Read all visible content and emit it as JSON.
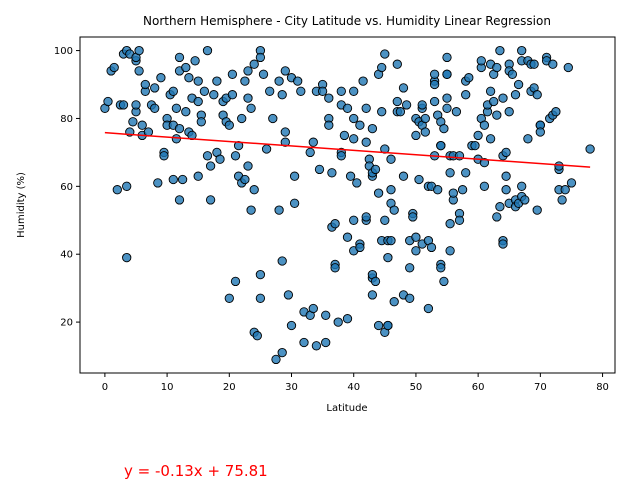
{
  "chart_data": {
    "type": "scatter",
    "title": "Northern Hemisphere - City Latitude vs. Humidity Linear Regression",
    "xlabel": "Latitude",
    "ylabel": "Humidity (%)",
    "xlim": [
      -4,
      82
    ],
    "ylim": [
      5,
      104
    ],
    "x_ticks": [
      0,
      10,
      20,
      30,
      40,
      50,
      60,
      70,
      80
    ],
    "y_ticks": [
      20,
      40,
      60,
      80,
      100
    ],
    "grid": false,
    "point_color": "#1f77b4",
    "line_color": "#ff0000",
    "regression": {
      "slope": -0.13,
      "intercept": 75.81,
      "equation": "y = -0.13x + 75.81",
      "x_range": [
        0,
        78
      ]
    },
    "points": [
      [
        0,
        83
      ],
      [
        0.5,
        85
      ],
      [
        1,
        94
      ],
      [
        1.5,
        95
      ],
      [
        2,
        59
      ],
      [
        2.5,
        84
      ],
      [
        3,
        84
      ],
      [
        3,
        99
      ],
      [
        3.5,
        100
      ],
      [
        3.5,
        39
      ],
      [
        3.5,
        60
      ],
      [
        4,
        76
      ],
      [
        4,
        99
      ],
      [
        4.5,
        79
      ],
      [
        5,
        82
      ],
      [
        5,
        84
      ],
      [
        5,
        97
      ],
      [
        5,
        98
      ],
      [
        5.5,
        94
      ],
      [
        5.5,
        100
      ],
      [
        6,
        75
      ],
      [
        6,
        78
      ],
      [
        6.5,
        88
      ],
      [
        6.5,
        90
      ],
      [
        7,
        76
      ],
      [
        7.5,
        84
      ],
      [
        8,
        83
      ],
      [
        8,
        89
      ],
      [
        8.5,
        61
      ],
      [
        9,
        92
      ],
      [
        9.5,
        70
      ],
      [
        9.5,
        69
      ],
      [
        10,
        80
      ],
      [
        10,
        78
      ],
      [
        10.5,
        87
      ],
      [
        11,
        78
      ],
      [
        11,
        88
      ],
      [
        11,
        62
      ],
      [
        11.5,
        74
      ],
      [
        11.5,
        83
      ],
      [
        12,
        56
      ],
      [
        12,
        94
      ],
      [
        12,
        98
      ],
      [
        12,
        77
      ],
      [
        12.5,
        62
      ],
      [
        13,
        95
      ],
      [
        13,
        82
      ],
      [
        13.5,
        76
      ],
      [
        13.5,
        92
      ],
      [
        14,
        86
      ],
      [
        14,
        75
      ],
      [
        14.5,
        97
      ],
      [
        15,
        63
      ],
      [
        15,
        91
      ],
      [
        15,
        85
      ],
      [
        15.5,
        81
      ],
      [
        15.5,
        79
      ],
      [
        16,
        88
      ],
      [
        16.5,
        69
      ],
      [
        16.5,
        100
      ],
      [
        17,
        56
      ],
      [
        17,
        66
      ],
      [
        17.5,
        87
      ],
      [
        18,
        70
      ],
      [
        18,
        91
      ],
      [
        18.5,
        68
      ],
      [
        19,
        81
      ],
      [
        19,
        85
      ],
      [
        19.5,
        86
      ],
      [
        19.5,
        79
      ],
      [
        20,
        27
      ],
      [
        20,
        78
      ],
      [
        20.5,
        93
      ],
      [
        20.5,
        87
      ],
      [
        21,
        32
      ],
      [
        21,
        69
      ],
      [
        21.5,
        72
      ],
      [
        21.5,
        63
      ],
      [
        22,
        80
      ],
      [
        22,
        61
      ],
      [
        22.5,
        62
      ],
      [
        22.5,
        91
      ],
      [
        23,
        66
      ],
      [
        23,
        86
      ],
      [
        23,
        94
      ],
      [
        23.5,
        83
      ],
      [
        23.5,
        53
      ],
      [
        24,
        96
      ],
      [
        24,
        59
      ],
      [
        24,
        17
      ],
      [
        24.5,
        16
      ],
      [
        25,
        100
      ],
      [
        25,
        27
      ],
      [
        25,
        34
      ],
      [
        25,
        98
      ],
      [
        25.5,
        93
      ],
      [
        26,
        71
      ],
      [
        26.5,
        88
      ],
      [
        27,
        80
      ],
      [
        27.5,
        9
      ],
      [
        28,
        91
      ],
      [
        28,
        53
      ],
      [
        28.5,
        87
      ],
      [
        28.5,
        11
      ],
      [
        28.5,
        38
      ],
      [
        29,
        76
      ],
      [
        29,
        73
      ],
      [
        29,
        94
      ],
      [
        29.5,
        28
      ],
      [
        30,
        19
      ],
      [
        30,
        92
      ],
      [
        30.5,
        63
      ],
      [
        30.5,
        55
      ],
      [
        31,
        91
      ],
      [
        31.5,
        88
      ],
      [
        32,
        23
      ],
      [
        32,
        14
      ],
      [
        33,
        22
      ],
      [
        33,
        70
      ],
      [
        33.5,
        73
      ],
      [
        33.5,
        24
      ],
      [
        34,
        13
      ],
      [
        34,
        88
      ],
      [
        34.5,
        65
      ],
      [
        35,
        90
      ],
      [
        35,
        88
      ],
      [
        35.5,
        22
      ],
      [
        35.5,
        14
      ],
      [
        36,
        80
      ],
      [
        36,
        78
      ],
      [
        36,
        86
      ],
      [
        36.5,
        48
      ],
      [
        36.5,
        64
      ],
      [
        37,
        37
      ],
      [
        37,
        36
      ],
      [
        37,
        49
      ],
      [
        37.5,
        20
      ],
      [
        38,
        84
      ],
      [
        38,
        70
      ],
      [
        38,
        69
      ],
      [
        38,
        88
      ],
      [
        38.5,
        75
      ],
      [
        39,
        83
      ],
      [
        39,
        21
      ],
      [
        39,
        45
      ],
      [
        39.5,
        63
      ],
      [
        40,
        80
      ],
      [
        40,
        88
      ],
      [
        40,
        50
      ],
      [
        40,
        41
      ],
      [
        40,
        74
      ],
      [
        40.5,
        61
      ],
      [
        41,
        43
      ],
      [
        41,
        42
      ],
      [
        41,
        78
      ],
      [
        41.5,
        91
      ],
      [
        42,
        83
      ],
      [
        42,
        50
      ],
      [
        42,
        51
      ],
      [
        42,
        73
      ],
      [
        42.5,
        68
      ],
      [
        42.5,
        66
      ],
      [
        43,
        77
      ],
      [
        43,
        63
      ],
      [
        43,
        33
      ],
      [
        43,
        34
      ],
      [
        43,
        28
      ],
      [
        43,
        64
      ],
      [
        43.5,
        32
      ],
      [
        43.5,
        65
      ],
      [
        44,
        58
      ],
      [
        44,
        93
      ],
      [
        44,
        19
      ],
      [
        44.5,
        82
      ],
      [
        44.5,
        44
      ],
      [
        44.5,
        95
      ],
      [
        45,
        17
      ],
      [
        45,
        99
      ],
      [
        45,
        71
      ],
      [
        45,
        50
      ],
      [
        45.5,
        19
      ],
      [
        45.5,
        44
      ],
      [
        45.5,
        39
      ],
      [
        45.5,
        19
      ],
      [
        46,
        68
      ],
      [
        46,
        59
      ],
      [
        46,
        55
      ],
      [
        46,
        44
      ],
      [
        46.5,
        53
      ],
      [
        46.5,
        26
      ],
      [
        47,
        85
      ],
      [
        47,
        82
      ],
      [
        47,
        96
      ],
      [
        47.5,
        82
      ],
      [
        48,
        28
      ],
      [
        48,
        63
      ],
      [
        48,
        89
      ],
      [
        48.5,
        84
      ],
      [
        49,
        27
      ],
      [
        49,
        44
      ],
      [
        49,
        36
      ],
      [
        49.5,
        52
      ],
      [
        49.5,
        51
      ],
      [
        50,
        75
      ],
      [
        50,
        80
      ],
      [
        50,
        41
      ],
      [
        50,
        45
      ],
      [
        50.5,
        79
      ],
      [
        50.5,
        62
      ],
      [
        51,
        83
      ],
      [
        51,
        84
      ],
      [
        51,
        43
      ],
      [
        51,
        78
      ],
      [
        51.5,
        76
      ],
      [
        51.5,
        80
      ],
      [
        52,
        60
      ],
      [
        52,
        44
      ],
      [
        52,
        24
      ],
      [
        52.5,
        60
      ],
      [
        52.5,
        42
      ],
      [
        53,
        69
      ],
      [
        53,
        91
      ],
      [
        53,
        90
      ],
      [
        53,
        93
      ],
      [
        53,
        85
      ],
      [
        53.5,
        81
      ],
      [
        53.5,
        59
      ],
      [
        54,
        79
      ],
      [
        54,
        72
      ],
      [
        54,
        72
      ],
      [
        54,
        37
      ],
      [
        54,
        36
      ],
      [
        54.5,
        77
      ],
      [
        54.5,
        32
      ],
      [
        55,
        93
      ],
      [
        55,
        83
      ],
      [
        55,
        98
      ],
      [
        55,
        86
      ],
      [
        55,
        93
      ],
      [
        55.5,
        69
      ],
      [
        55.5,
        64
      ],
      [
        55.5,
        49
      ],
      [
        55.5,
        41
      ],
      [
        56,
        56
      ],
      [
        56,
        58
      ],
      [
        56,
        69
      ],
      [
        56.5,
        82
      ],
      [
        57,
        69
      ],
      [
        57,
        52
      ],
      [
        57,
        50
      ],
      [
        57.5,
        59
      ],
      [
        58,
        91
      ],
      [
        58,
        87
      ],
      [
        58,
        64
      ],
      [
        58.5,
        92
      ],
      [
        59,
        72
      ],
      [
        59.5,
        72
      ],
      [
        60,
        75
      ],
      [
        60,
        68
      ],
      [
        60.5,
        95
      ],
      [
        60.5,
        97
      ],
      [
        60.5,
        80
      ],
      [
        61,
        67
      ],
      [
        61,
        60
      ],
      [
        61,
        78
      ],
      [
        61.5,
        82
      ],
      [
        61.5,
        84
      ],
      [
        62,
        88
      ],
      [
        62,
        74
      ],
      [
        62,
        96
      ],
      [
        62.5,
        85
      ],
      [
        62.5,
        93
      ],
      [
        63,
        95
      ],
      [
        63,
        81
      ],
      [
        63,
        51
      ],
      [
        63.5,
        100
      ],
      [
        63.5,
        54
      ],
      [
        64,
        44
      ],
      [
        64,
        43
      ],
      [
        64,
        69
      ],
      [
        64,
        86
      ],
      [
        64.5,
        70
      ],
      [
        64.5,
        63
      ],
      [
        64.5,
        59
      ],
      [
        65,
        96
      ],
      [
        65,
        94
      ],
      [
        65,
        82
      ],
      [
        65,
        55
      ],
      [
        65.5,
        93
      ],
      [
        66,
        87
      ],
      [
        66,
        56
      ],
      [
        66,
        54
      ],
      [
        66.5,
        90
      ],
      [
        66.5,
        55
      ],
      [
        67,
        60
      ],
      [
        67,
        100
      ],
      [
        67,
        97
      ],
      [
        67,
        57
      ],
      [
        67.5,
        56
      ],
      [
        68,
        74
      ],
      [
        68,
        97
      ],
      [
        68.5,
        88
      ],
      [
        68.5,
        96
      ],
      [
        69,
        96
      ],
      [
        69,
        89
      ],
      [
        69.5,
        87
      ],
      [
        69.5,
        53
      ],
      [
        70,
        78
      ],
      [
        70,
        78
      ],
      [
        70,
        76
      ],
      [
        71,
        98
      ],
      [
        71,
        97
      ],
      [
        71.5,
        80
      ],
      [
        72,
        81
      ],
      [
        72,
        96
      ],
      [
        72.5,
        82
      ],
      [
        73,
        65
      ],
      [
        73,
        59
      ],
      [
        73,
        66
      ],
      [
        73.5,
        56
      ],
      [
        74,
        59
      ],
      [
        74.5,
        95
      ],
      [
        75,
        61
      ],
      [
        78,
        71
      ]
    ]
  }
}
